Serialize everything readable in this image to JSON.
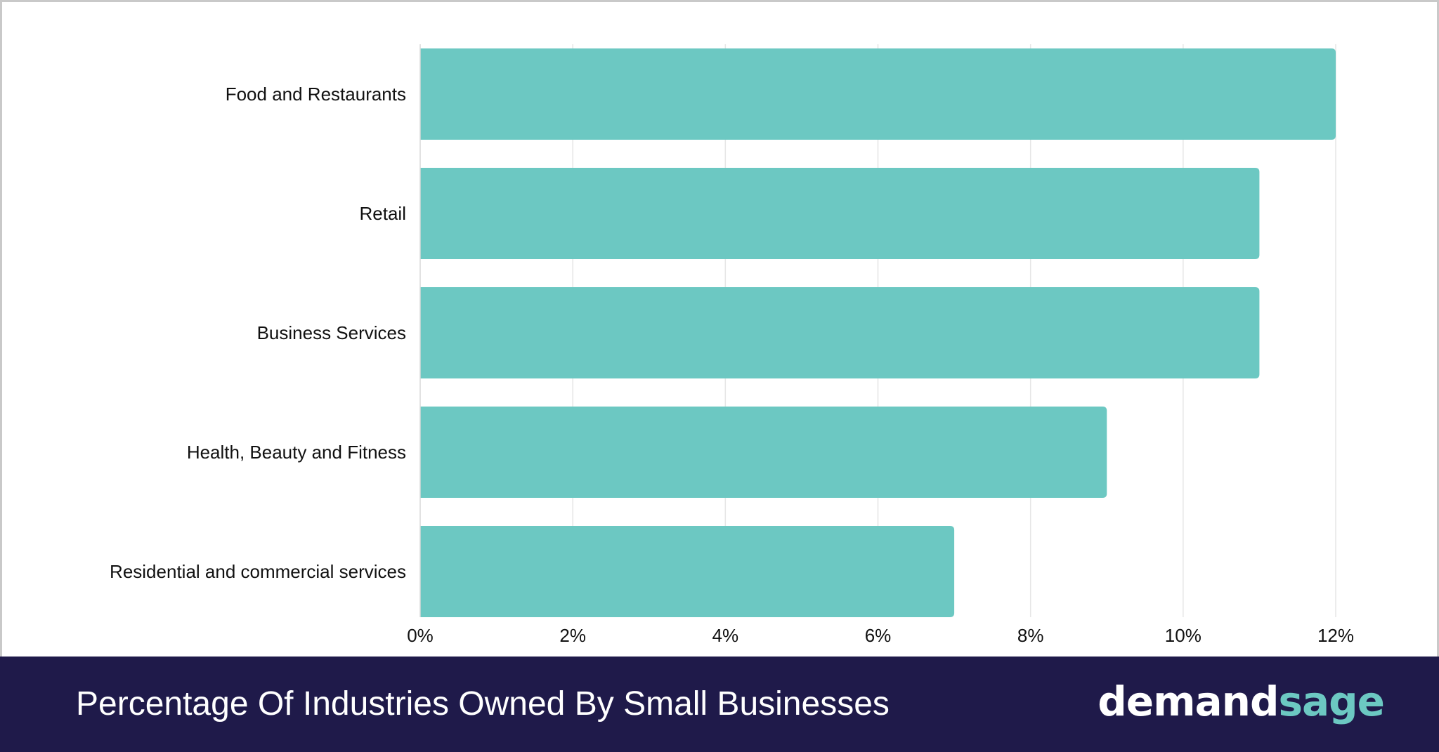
{
  "chart_data": {
    "type": "bar",
    "orientation": "horizontal",
    "categories": [
      "Food and Restaurants",
      "Retail",
      "Business Services",
      "Health, Beauty and Fitness",
      "Residential and commercial services"
    ],
    "values": [
      12,
      11,
      11,
      9,
      7
    ],
    "unit": "%",
    "xlim": [
      0,
      12
    ],
    "xticks": [
      "0%",
      "2%",
      "4%",
      "6%",
      "8%",
      "10%",
      "12%"
    ],
    "tick_values": [
      0,
      2,
      4,
      6,
      8,
      10,
      12
    ],
    "grid": "vertical",
    "bar_color": "#6cc8c2",
    "legend": "none",
    "title": "Percentage Of Industries Owned By Small Businesses"
  },
  "footer": {
    "title": "Percentage Of Industries Owned By Small Businesses",
    "brand_part1": "demand",
    "brand_part2": "sage",
    "background": "#1f1a4a"
  }
}
